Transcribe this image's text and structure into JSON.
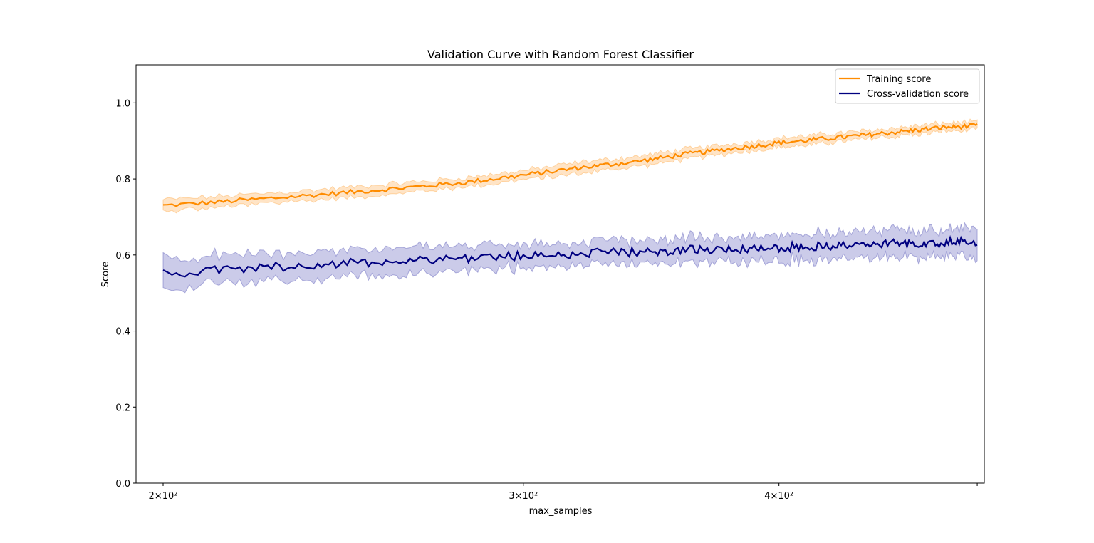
{
  "chart_data": {
    "type": "line",
    "title": "Validation Curve with Random Forest Classifier",
    "xlabel": "max_samples",
    "ylabel": "Score",
    "xscale": "log",
    "xlim": [
      194,
      504
    ],
    "ylim": [
      0.0,
      1.1
    ],
    "x_ticks": [
      {
        "value": 200,
        "label": "2×10²"
      },
      {
        "value": 300,
        "label": "3×10²"
      },
      {
        "value": 400,
        "label": "4×10²"
      },
      {
        "value": 500,
        "label": ""
      }
    ],
    "y_ticks": [
      {
        "value": 0.0,
        "label": "0.0"
      },
      {
        "value": 0.2,
        "label": "0.2"
      },
      {
        "value": 0.4,
        "label": "0.4"
      },
      {
        "value": 0.6,
        "label": "0.6"
      },
      {
        "value": 0.8,
        "label": "0.8"
      },
      {
        "value": 1.0,
        "label": "1.0"
      }
    ],
    "legend_position": "top-right",
    "grid": false,
    "x": [
      200,
      220,
      240,
      260,
      280,
      300,
      320,
      340,
      360,
      380,
      400,
      420,
      440,
      460,
      480,
      500
    ],
    "series": [
      {
        "name": "Training score",
        "color": "#ff8c00",
        "band_color": "#ffb35c",
        "values": [
          0.73,
          0.745,
          0.76,
          0.775,
          0.79,
          0.81,
          0.83,
          0.845,
          0.865,
          0.88,
          0.895,
          0.905,
          0.915,
          0.925,
          0.935,
          0.94
        ],
        "std": [
          0.015,
          0.014,
          0.013,
          0.013,
          0.012,
          0.012,
          0.014,
          0.013,
          0.013,
          0.012,
          0.012,
          0.012,
          0.011,
          0.011,
          0.011,
          0.01
        ]
      },
      {
        "name": "Cross-validation score",
        "color": "#000080",
        "band_color": "#6a6ac0",
        "values": [
          0.55,
          0.565,
          0.575,
          0.585,
          0.592,
          0.598,
          0.604,
          0.608,
          0.613,
          0.617,
          0.62,
          0.624,
          0.627,
          0.63,
          0.633,
          0.635
        ],
        "std": [
          0.04,
          0.038,
          0.036,
          0.034,
          0.032,
          0.03,
          0.03,
          0.03,
          0.031,
          0.032,
          0.033,
          0.034,
          0.034,
          0.035,
          0.036,
          0.036
        ]
      }
    ]
  }
}
